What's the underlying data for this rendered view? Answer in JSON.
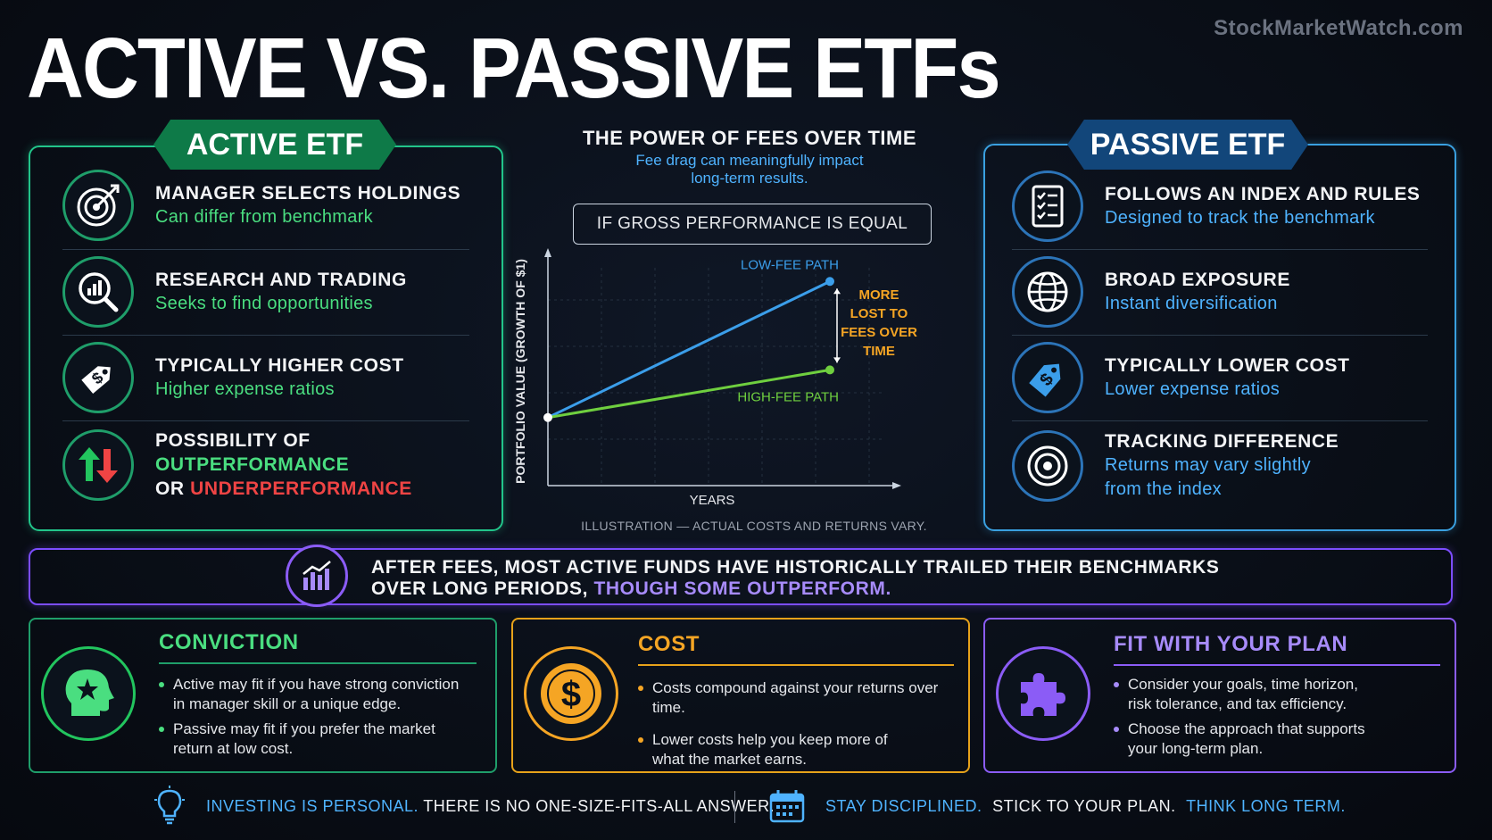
{
  "watermark": "StockMarketWatch.com",
  "title": "ACTIVE VS. PASSIVE ETFs",
  "active": {
    "tab": "ACTIVE ETF",
    "items": [
      {
        "title": "MANAGER SELECTS HOLDINGS",
        "sub": "Can differ from benchmark",
        "icon": "target-icon"
      },
      {
        "title": "RESEARCH AND TRADING",
        "sub": "Seeks to find opportunities",
        "icon": "magnifier-chart-icon"
      },
      {
        "title": "TYPICALLY HIGHER COST",
        "sub": "Higher expense ratios",
        "icon": "price-tag-icon"
      },
      {
        "title_line1": "POSSIBILITY OF",
        "outperformance": "OUTPERFORMANCE",
        "or": "OR",
        "underperformance": "UNDERPERFORMANCE",
        "icon": "up-down-arrows-icon"
      }
    ]
  },
  "passive": {
    "tab": "PASSIVE ETF",
    "items": [
      {
        "title": "FOLLOWS AN INDEX AND RULES",
        "sub": "Designed to track the benchmark",
        "icon": "checklist-icon"
      },
      {
        "title": "BROAD EXPOSURE",
        "sub": "Instant diversification",
        "icon": "globe-icon"
      },
      {
        "title": "TYPICALLY LOWER COST",
        "sub": "Lower expense ratios",
        "icon": "price-tag-icon"
      },
      {
        "title": "TRACKING DIFFERENCE",
        "sub_line1": "Returns may vary slightly",
        "sub_line2": "from the index",
        "icon": "bullseye-icon"
      }
    ]
  },
  "middle": {
    "title": "THE POWER OF FEES OVER TIME",
    "subtitle_line1": "Fee drag can meaningfully impact",
    "subtitle_line2": "long-term results.",
    "gross_box": "IF GROSS PERFORMANCE IS EQUAL",
    "note": "ILLUSTRATION — ACTUAL COSTS AND RETURNS VARY."
  },
  "chart_data": {
    "type": "line",
    "title": "",
    "xlabel": "YEARS",
    "ylabel": "PORTFOLIO VALUE (GROWTH OF $1)",
    "x": [
      0,
      1
    ],
    "series": [
      {
        "name": "LOW-FEE PATH",
        "values": [
          1.0,
          2.0
        ],
        "color": "#3b9eea"
      },
      {
        "name": "HIGH-FEE PATH",
        "values": [
          1.0,
          1.35
        ],
        "color": "#6fcf3f"
      }
    ],
    "annotation": [
      "MORE",
      "LOST TO",
      "FEES OVER",
      "TIME"
    ],
    "annotation_color": "#f5a524",
    "grid": true,
    "legend": "inline labels"
  },
  "banner": {
    "line1": "AFTER FEES, MOST ACTIVE FUNDS HAVE HISTORICALLY TRAILED THEIR BENCHMARKS",
    "line2_a": "OVER LONG PERIODS,",
    "line2_b": "THOUGH SOME OUTPERFORM.",
    "icon": "bar-chart-icon"
  },
  "cards": {
    "conviction": {
      "title": "CONVICTION",
      "bullets": [
        [
          "Active may fit if you have strong conviction",
          "in manager skill or a unique edge."
        ],
        [
          "Passive may fit if you prefer the market",
          "return at low cost."
        ]
      ],
      "icon": "head-star-icon"
    },
    "cost": {
      "title": "COST",
      "bullets": [
        [
          "Costs compound against your returns over time."
        ],
        [
          "Lower costs help you keep more of",
          "what the market earns."
        ]
      ],
      "icon": "dollar-coin-icon"
    },
    "fit": {
      "title": "FIT WITH YOUR PLAN",
      "bullets": [
        [
          "Consider your goals, time horizon,",
          "risk tolerance, and tax efficiency."
        ],
        [
          "Choose the approach that supports",
          "your long-term plan."
        ]
      ],
      "icon": "puzzle-piece-icon"
    }
  },
  "footer": {
    "left_a": "INVESTING IS PERSONAL.",
    "left_b": "THERE IS NO ONE-SIZE-FITS-ALL ANSWER.",
    "right_a": "STAY DISCIPLINED.",
    "right_b": "STICK TO YOUR PLAN.",
    "right_c": "THINK LONG TERM.",
    "left_icon": "lightbulb-icon",
    "right_icon": "calendar-icon"
  },
  "colors": {
    "active_green": "#22c58a",
    "passive_blue": "#3aa0e0",
    "banner_purple": "#7c4dff",
    "cost_orange": "#e7a21a",
    "under_red": "#ef4444"
  }
}
